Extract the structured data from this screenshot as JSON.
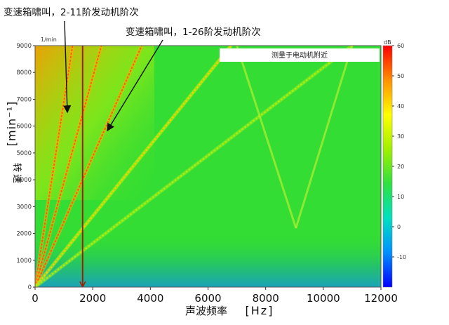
{
  "chart_data": {
    "type": "heatmap",
    "title": "",
    "annotations": [
      {
        "text": "变速箱啸叫，2-11阶发动机阶次",
        "points_to": {
          "x": 1130,
          "y": 6300
        }
      },
      {
        "text": "变速箱啸叫，1-26阶发动机阶次",
        "points_to": {
          "x": 2500,
          "y": 5800
        }
      },
      {
        "text": "测量于电动机附近"
      }
    ],
    "xlabel": "声波频率",
    "xunit": "[Hz]",
    "ylabel": "转速",
    "yunit": "[min⁻¹]",
    "y_axis_unit_label": "1/min",
    "colorbar_label": "dB",
    "xlim": [
      0,
      12000
    ],
    "ylim": [
      0,
      9000
    ],
    "x_ticks": [
      "0",
      "2000",
      "4000",
      "6000",
      "8000",
      "10000",
      "12000"
    ],
    "y_ticks": [
      "0",
      "1000",
      "2000",
      "3000",
      "4000",
      "5000",
      "6000",
      "7000",
      "8000",
      "9000"
    ],
    "colorbar": {
      "range": [
        -20,
        60
      ],
      "ticks": [
        "-10",
        "0",
        "10",
        "20",
        "30",
        "40",
        "50",
        "60"
      ],
      "colors": [
        "#0000ff",
        "#0090ff",
        "#00e0c0",
        "#30e040",
        "#a0f000",
        "#ffff00",
        "#ff9000",
        "#ff0000"
      ]
    },
    "vertical_marker_hz": 1650,
    "order_lines": [
      {
        "name": "order-a",
        "x_at_9000": 1300,
        "intensity": "high"
      },
      {
        "name": "order-b",
        "x_at_9000": 2300,
        "intensity": "high"
      },
      {
        "name": "order-c",
        "x_at_9000": 3700,
        "intensity": "high"
      },
      {
        "name": "order-d",
        "x_at_9000": 6800,
        "intensity": "medium"
      },
      {
        "name": "order-e",
        "x_at_9000": 11000,
        "intensity": "low"
      }
    ],
    "resonance_lines": [
      {
        "name": "resonance-left",
        "start": [
          7000,
          9000
        ],
        "end": [
          9050,
          2200
        ]
      },
      {
        "name": "resonance-right",
        "start": [
          11000,
          9000
        ],
        "end": [
          9050,
          2200
        ]
      }
    ],
    "background_color": "#33dd33",
    "low_speed_band_color": "#22bb66"
  }
}
